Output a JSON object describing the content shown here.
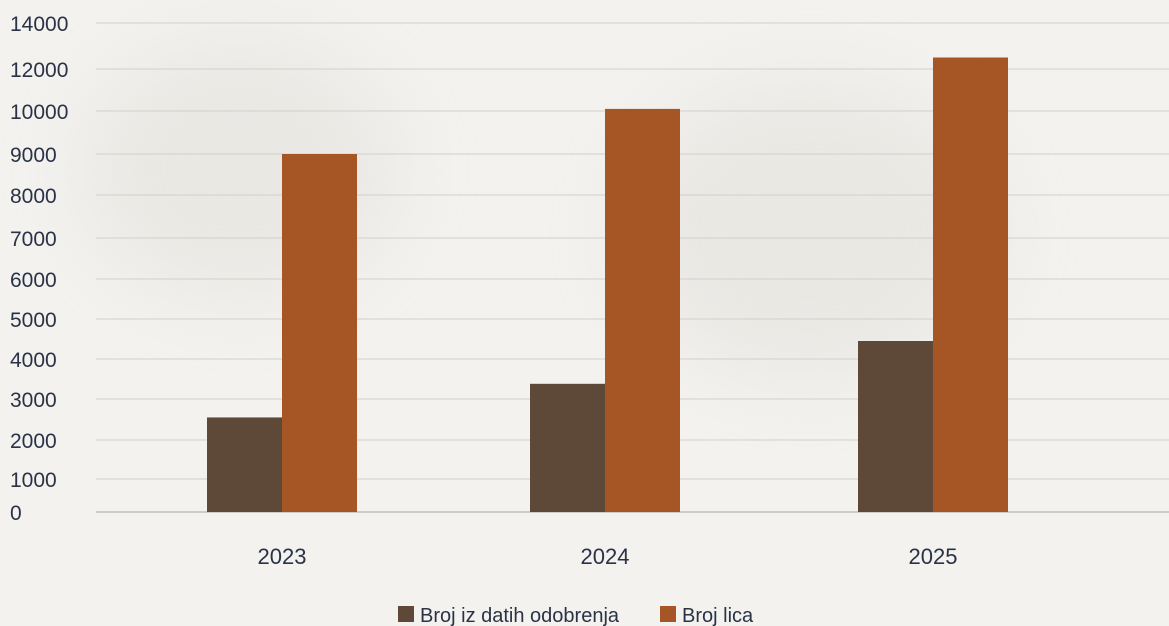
{
  "colors": {
    "background": "#f3f2ef",
    "grid": "#d2d0cb",
    "axis": "#b8b6b0",
    "tick_text": "#2a3346",
    "series_1": "#5e4837",
    "series_2": "#a65624"
  },
  "chart_data": {
    "type": "bar",
    "categories": [
      "2023",
      "2024",
      "2025"
    ],
    "series": [
      {
        "name": "Broj iz datih odobrenja",
        "values": [
          2550,
          3380,
          4450
        ]
      },
      {
        "name": "Broj lica",
        "values": [
          9000,
          10100,
          12500
        ]
      }
    ],
    "y_ticks": [
      "0",
      "1000",
      "2000",
      "3000",
      "4000",
      "5000",
      "6000",
      "7000",
      "8000",
      "9000",
      "10000",
      "12000",
      "14000"
    ],
    "ylim": [
      0,
      14000
    ],
    "grid": true,
    "legend_position": "bottom-center"
  }
}
